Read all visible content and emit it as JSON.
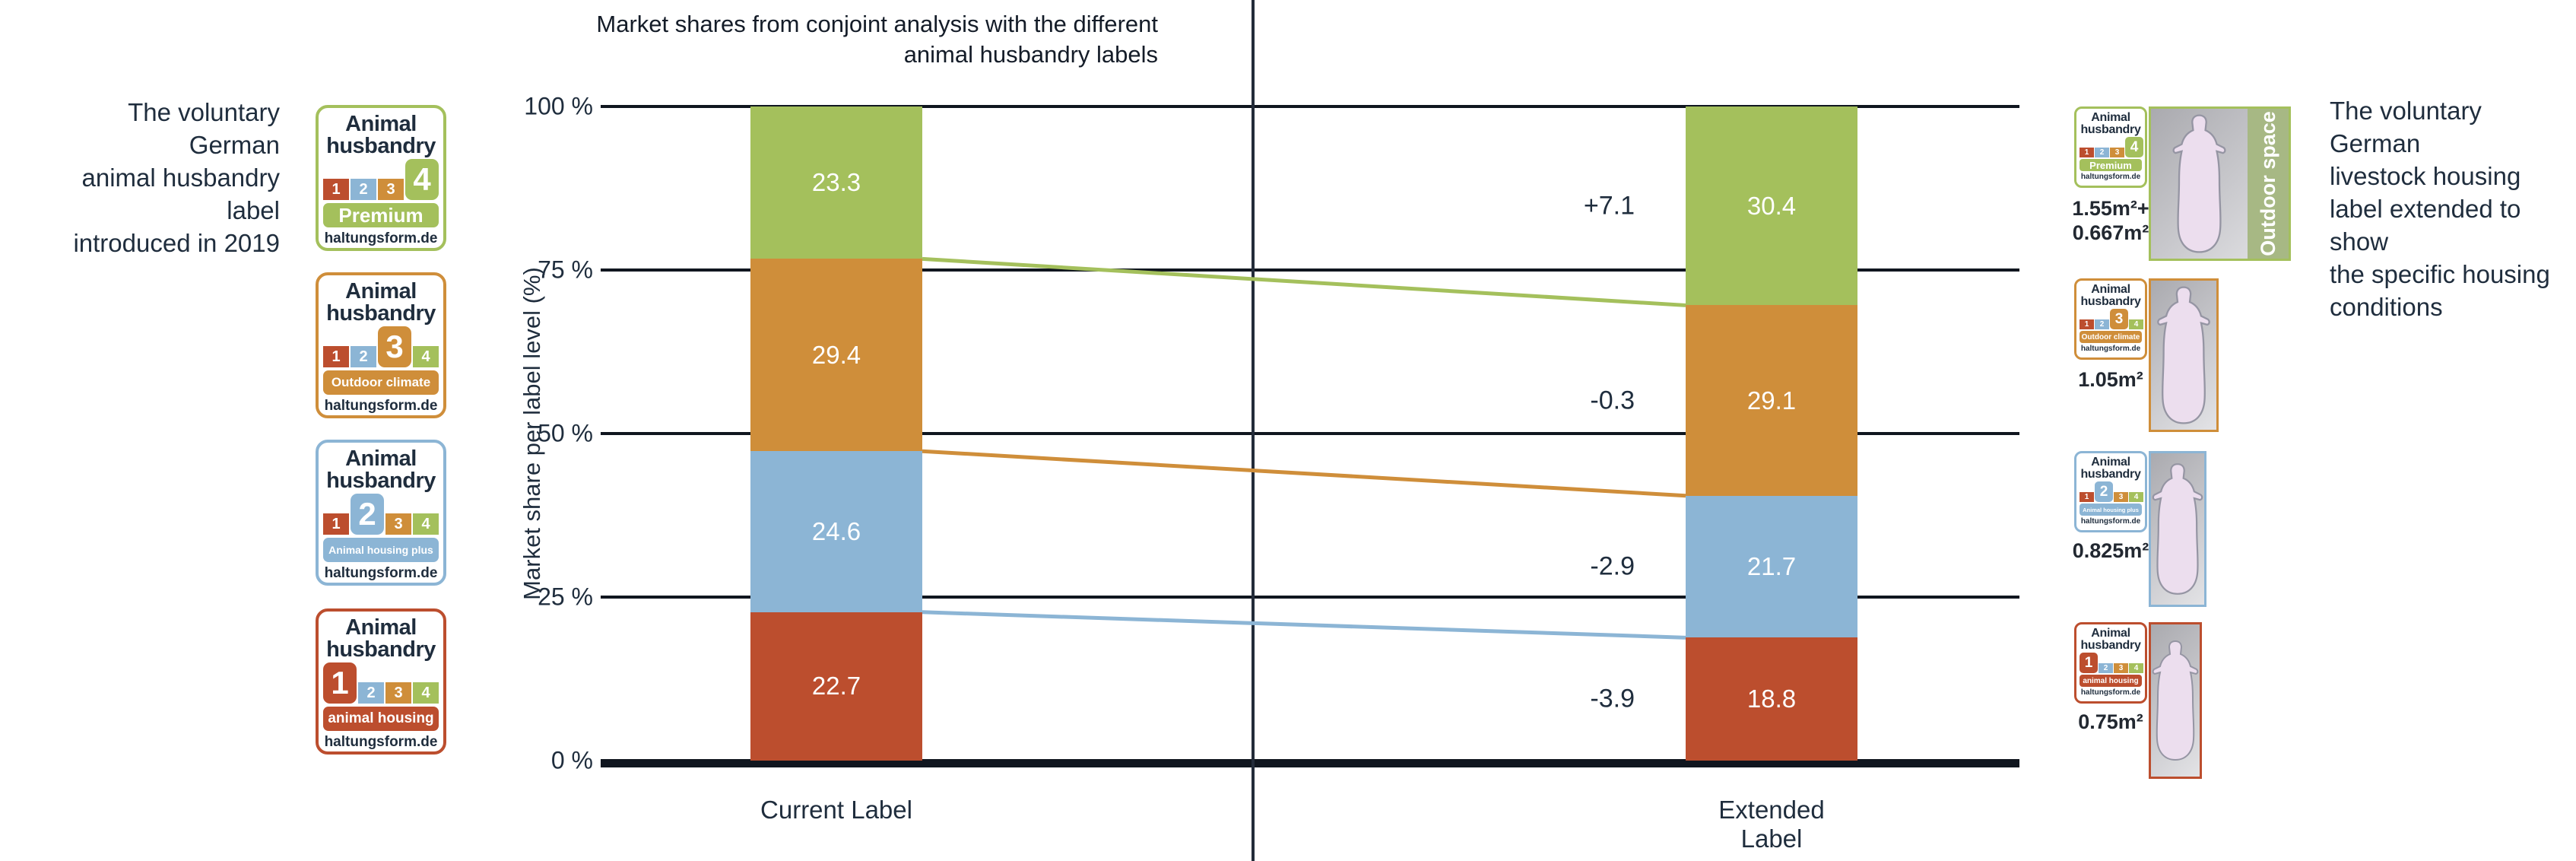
{
  "title": {
    "lines": [
      "Market shares from conjoint analysis with the different",
      "animal husbandry labels"
    ]
  },
  "notes": {
    "left": {
      "lines": [
        "The voluntary German",
        "animal husbandry label",
        "introduced in 2019"
      ]
    },
    "right": {
      "lines": [
        "The voluntary German",
        "livestock housing",
        "label extended to show",
        "the specific housing",
        "conditions"
      ]
    }
  },
  "chart_data": {
    "type": "stacked-bar",
    "categories": [
      "Current Label",
      "Extended Label"
    ],
    "ylabel": "Market share per label level (%)",
    "ylim": [
      0,
      100
    ],
    "grid": true,
    "legend_position": "none",
    "yticks": [
      {
        "value": 100,
        "label": "100 %"
      },
      {
        "value": 75,
        "label": "75 %"
      },
      {
        "value": 50,
        "label": "50 %"
      },
      {
        "value": 25,
        "label": "25 %"
      },
      {
        "value": 0,
        "label": "0 %"
      }
    ],
    "series": [
      {
        "level": 4,
        "name": "Premium",
        "color": "#a4c05c",
        "values": [
          23.3,
          30.4
        ],
        "change": "+7.1"
      },
      {
        "level": 3,
        "name": "Outdoor climate",
        "color": "#cf8e3a",
        "values": [
          29.4,
          29.1
        ],
        "change": "-0.3"
      },
      {
        "level": 2,
        "name": "Animal housing plus",
        "color": "#8cb5d5",
        "values": [
          24.6,
          21.7
        ],
        "change": "-2.9"
      },
      {
        "level": 1,
        "name": "animal housing",
        "color": "#bc4e2e",
        "values": [
          22.7,
          18.8
        ],
        "change": "-3.9"
      }
    ]
  },
  "badge_common": {
    "title_lines": [
      "Animal",
      "husbandry"
    ],
    "scale_digits": [
      "1",
      "2",
      "3",
      "4"
    ],
    "site": "haltungsform.de"
  },
  "levels": [
    {
      "level": 4,
      "banner": "Premium",
      "area_lines": [
        "1.55m²+",
        "0.667m²"
      ],
      "outdoor_label": "Outdoor space"
    },
    {
      "level": 3,
      "banner": "Outdoor climate",
      "area_lines": [
        "1.05m²"
      ]
    },
    {
      "level": 2,
      "banner": "Animal housing plus",
      "area_lines": [
        "0.825m²"
      ]
    },
    {
      "level": 1,
      "banner": "animal housing",
      "area_lines": [
        "0.75m²"
      ]
    }
  ],
  "colors": {
    "text": "#1f2d3d",
    "grid": "#10161f",
    "divider": "#232c3a",
    "bar_value_text": "#ffffff",
    "pig_fill": "#ecdeee",
    "pig_stroke": "#9595a3",
    "outdoor_strip": "#a7b884"
  }
}
